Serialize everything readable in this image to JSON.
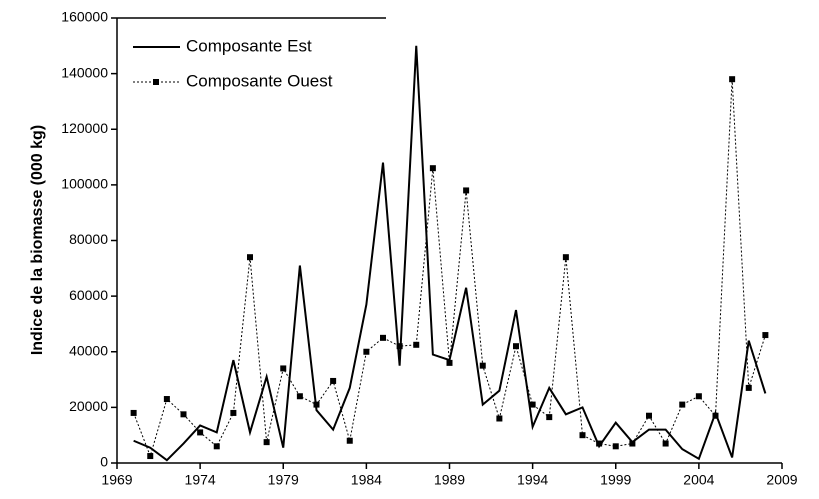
{
  "chart_data": {
    "type": "line",
    "y_label": "Indice de la biomasse (000  kg)",
    "x": [
      1970,
      1971,
      1972,
      1973,
      1974,
      1975,
      1976,
      1977,
      1978,
      1979,
      1980,
      1981,
      1982,
      1983,
      1984,
      1985,
      1986,
      1987,
      1988,
      1989,
      1990,
      1991,
      1992,
      1993,
      1994,
      1995,
      1996,
      1997,
      1998,
      1999,
      2000,
      2001,
      2002,
      2003,
      2004,
      2005,
      2006,
      2007,
      2008
    ],
    "series": [
      {
        "name": "Composante Est",
        "color": "#000000",
        "style": "solid",
        "values": [
          8000,
          5500,
          1000,
          7000,
          13500,
          11000,
          37000,
          11000,
          31000,
          5500,
          71000,
          19000,
          12000,
          27000,
          57000,
          108000,
          35000,
          150000,
          39000,
          37000,
          63000,
          21000,
          26000,
          55000,
          13000,
          27000,
          17500,
          20000,
          6000,
          14500,
          7500,
          12000,
          12000,
          5000,
          1500,
          18000,
          2000,
          44000,
          25000
        ]
      },
      {
        "name": "Composante Ouest",
        "color": "#000000",
        "style": "dotted",
        "values": [
          18000,
          2500,
          23000,
          17500,
          11000,
          6000,
          18000,
          74000,
          7500,
          34000,
          24000,
          21000,
          29500,
          8000,
          40000,
          45000,
          42000,
          42500,
          106000,
          36000,
          98000,
          35000,
          16000,
          42000,
          21000,
          16500,
          74000,
          10000,
          7000,
          6000,
          7000,
          17000,
          7000,
          21000,
          24000,
          17000,
          138000,
          27000,
          46000
        ]
      }
    ],
    "xlim": [
      1969,
      2009
    ],
    "xticks": [
      1969,
      1974,
      1979,
      1984,
      1989,
      1994,
      1999,
      2004,
      2009
    ],
    "ylim": [
      0,
      160000
    ],
    "yticks": [
      0,
      20000,
      40000,
      60000,
      80000,
      100000,
      120000,
      140000,
      160000
    ],
    "legend": "upper left",
    "grid": false
  }
}
